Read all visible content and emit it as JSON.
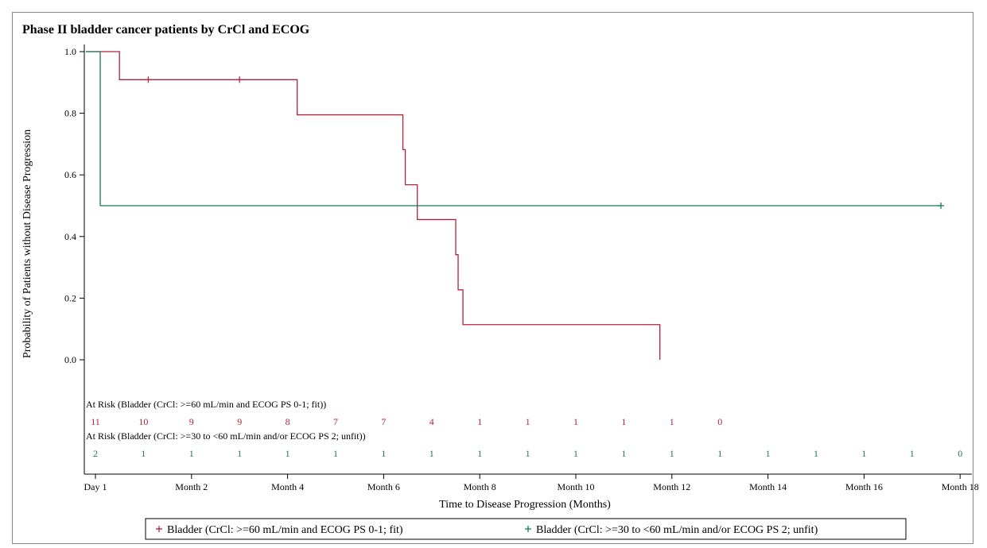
{
  "chart_data": {
    "type": "line",
    "title": "Phase II bladder cancer patients by CrCl and ECOG",
    "xlabel": "Time to Disease Progression (Months)",
    "ylabel": "Probability of Patients without Disease Progression",
    "xlim": [
      0.8,
      18.2
    ],
    "ylim": [
      -0.05,
      1.0
    ],
    "x_ticks": [
      {
        "value": 1,
        "label": "Day 1"
      },
      {
        "value": 3,
        "label": "Month 2"
      },
      {
        "value": 5,
        "label": "Month 4"
      },
      {
        "value": 7,
        "label": "Month 6"
      },
      {
        "value": 9,
        "label": "Month 8"
      },
      {
        "value": 11,
        "label": "Month 10"
      },
      {
        "value": 13,
        "label": "Month 12"
      },
      {
        "value": 15,
        "label": "Month 14"
      },
      {
        "value": 17,
        "label": "Month 16"
      },
      {
        "value": 19,
        "label": "Month 18"
      }
    ],
    "y_ticks": [
      {
        "value": 0.0,
        "label": "0.0"
      },
      {
        "value": 0.2,
        "label": "0.2"
      },
      {
        "value": 0.4,
        "label": "0.4"
      },
      {
        "value": 0.6,
        "label": "0.6"
      },
      {
        "value": 0.8,
        "label": "0.8"
      },
      {
        "value": 1.0,
        "label": "1.0"
      }
    ],
    "grid": false,
    "legend_placement": "bottom",
    "series": [
      {
        "name": "Bladder (CrCl: >=60 mL/min and ECOG PS 0-1; fit)",
        "color": "#b2223b",
        "marker": "+",
        "steps": [
          [
            0.8,
            1.0
          ],
          [
            1.5,
            0.909
          ],
          [
            5.2,
            0.795
          ],
          [
            7.4,
            0.682
          ],
          [
            7.45,
            0.568
          ],
          [
            7.7,
            0.455
          ],
          [
            8.5,
            0.341
          ],
          [
            8.55,
            0.227
          ],
          [
            8.65,
            0.114
          ],
          [
            12.75,
            0.0
          ]
        ],
        "end_x": 12.75,
        "censored": [
          [
            2.1,
            0.909
          ],
          [
            4.0,
            0.909
          ]
        ]
      },
      {
        "name": "Bladder (CrCl: >=30 to <60 mL/min and/or ECOG PS 2; unfit)",
        "color": "#1b7a5a",
        "marker": "+",
        "steps": [
          [
            0.8,
            1.0
          ],
          [
            1.1,
            0.5
          ]
        ],
        "end_x": 18.6,
        "censored": [
          [
            18.6,
            0.5
          ]
        ]
      }
    ],
    "at_risk": {
      "x": [
        1,
        2,
        3,
        4,
        5,
        6,
        7,
        8,
        9,
        10,
        11,
        12,
        13,
        14,
        15,
        16,
        17,
        18,
        19
      ],
      "groups": [
        {
          "title": "At Risk (Bladder (CrCl: >=60 mL/min and ECOG PS 0-1; fit))",
          "color": "#b2223b",
          "counts": [
            "11",
            "10",
            "9",
            "9",
            "8",
            "7",
            "7",
            "4",
            "1",
            "1",
            "1",
            "1",
            "1",
            "0"
          ]
        },
        {
          "title": "At Risk (Bladder (CrCl: >=30 to <60 mL/min and/or ECOG PS 2; unfit))",
          "color": "#1b7a5a",
          "counts": [
            "2",
            "1",
            "1",
            "1",
            "1",
            "1",
            "1",
            "1",
            "1",
            "1",
            "1",
            "1",
            "1",
            "1",
            "1",
            "1",
            "1",
            "1",
            "0"
          ]
        }
      ]
    }
  }
}
